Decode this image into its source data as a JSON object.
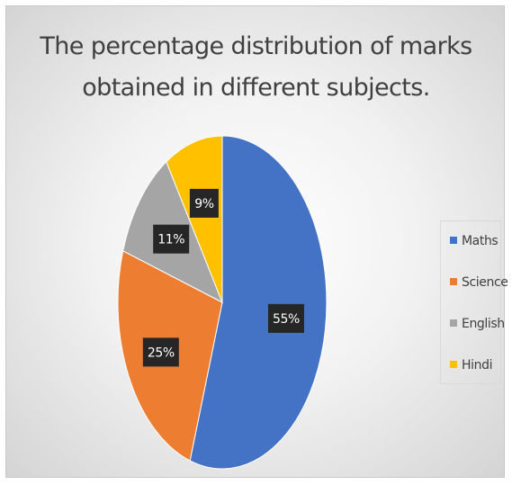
{
  "chart_data": {
    "type": "pie",
    "title": "The percentage distribution of marks obtained in different subjects.",
    "title_lines": [
      "The percentage distribution of marks",
      "obtained in different subjects."
    ],
    "categories": [
      "Maths",
      "Science",
      "English",
      "Hindi"
    ],
    "values": [
      55,
      25,
      11,
      9
    ],
    "data_labels": [
      "55%",
      "25%",
      "11%",
      "9%"
    ],
    "colors": [
      "#4472c4",
      "#ed7d31",
      "#a5a5a5",
      "#ffc000"
    ],
    "legend_position": "right"
  }
}
